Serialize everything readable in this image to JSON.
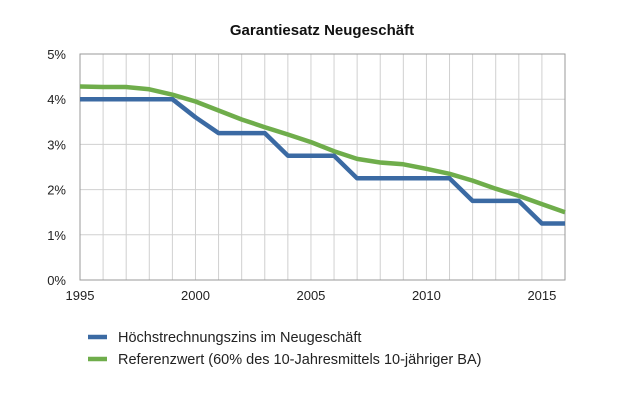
{
  "chart_data": {
    "type": "line",
    "title": "Garantiesatz Neugeschäft",
    "xlabel": "",
    "ylabel": "",
    "xlim": [
      1995,
      2016
    ],
    "ylim": [
      0,
      5
    ],
    "x_ticks": [
      "1995",
      "2000",
      "2005",
      "2010",
      "2015"
    ],
    "y_ticks": [
      "0%",
      "1%",
      "2%",
      "3%",
      "4%",
      "5%"
    ],
    "grid": true,
    "legend_position": "bottom",
    "series": [
      {
        "name": "Höchstrechnungszins im Neugeschäft",
        "color": "#3b6aa3",
        "style": "step",
        "points": [
          [
            1995,
            4.0
          ],
          [
            1999,
            4.0
          ],
          [
            2000,
            3.6
          ],
          [
            2001,
            3.25
          ],
          [
            2003,
            3.25
          ],
          [
            2004,
            2.75
          ],
          [
            2006,
            2.75
          ],
          [
            2007,
            2.25
          ],
          [
            2011,
            2.25
          ],
          [
            2012,
            1.75
          ],
          [
            2014,
            1.75
          ],
          [
            2015,
            1.25
          ],
          [
            2016,
            1.25
          ]
        ]
      },
      {
        "name": "Referenzwert (60% des 10-Jahresmittels 10-jähriger BA)",
        "color": "#6fad4b",
        "style": "line",
        "points": [
          [
            1995,
            4.28
          ],
          [
            1996,
            4.27
          ],
          [
            1997,
            4.27
          ],
          [
            1998,
            4.22
          ],
          [
            1999,
            4.1
          ],
          [
            2000,
            3.95
          ],
          [
            2001,
            3.75
          ],
          [
            2002,
            3.55
          ],
          [
            2003,
            3.38
          ],
          [
            2004,
            3.22
          ],
          [
            2005,
            3.05
          ],
          [
            2006,
            2.85
          ],
          [
            2007,
            2.68
          ],
          [
            2008,
            2.6
          ],
          [
            2009,
            2.56
          ],
          [
            2010,
            2.46
          ],
          [
            2011,
            2.35
          ],
          [
            2012,
            2.2
          ],
          [
            2013,
            2.02
          ],
          [
            2014,
            1.86
          ],
          [
            2015,
            1.68
          ],
          [
            2016,
            1.5
          ]
        ]
      }
    ]
  }
}
